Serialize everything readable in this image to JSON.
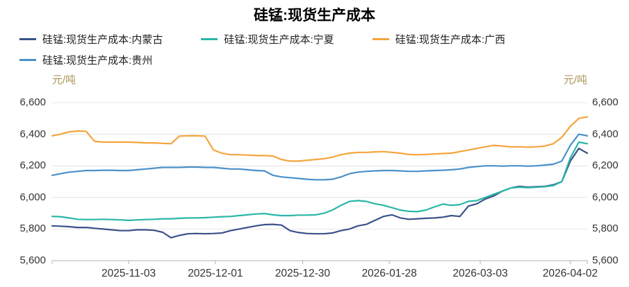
{
  "chart_data": {
    "type": "line",
    "title": "硅锰:现货生产成本",
    "y_unit": "元/吨",
    "ylim": [
      5600,
      6600
    ],
    "yticks": [
      5600,
      5800,
      6000,
      6200,
      6400,
      6600
    ],
    "grid": "horizontal",
    "legend_position": "top-left",
    "x_ticks": [
      {
        "label": "2025-11-03",
        "pos": 0.143
      },
      {
        "label": "2025-12-01",
        "pos": 0.305
      },
      {
        "label": "2025-12-30",
        "pos": 0.468
      },
      {
        "label": "2026-01-28",
        "pos": 0.63
      },
      {
        "label": "2026-03-03",
        "pos": 0.8
      },
      {
        "label": "2026-04-02",
        "pos": 0.968
      }
    ],
    "series": [
      {
        "name": "硅锰:现货生产成本:内蒙古",
        "color": "#3a5289",
        "values": [
          5820,
          5818,
          5815,
          5810,
          5810,
          5805,
          5800,
          5795,
          5790,
          5790,
          5795,
          5795,
          5792,
          5780,
          5745,
          5760,
          5770,
          5772,
          5770,
          5772,
          5775,
          5790,
          5800,
          5810,
          5820,
          5828,
          5830,
          5825,
          5790,
          5778,
          5772,
          5770,
          5770,
          5775,
          5790,
          5800,
          5820,
          5830,
          5855,
          5880,
          5890,
          5870,
          5862,
          5865,
          5868,
          5870,
          5875,
          5885,
          5880,
          5945,
          5960,
          5990,
          6010,
          6040,
          6060,
          6070,
          6065,
          6068,
          6070,
          6080,
          6100,
          6230,
          6310,
          6280
        ]
      },
      {
        "name": "硅锰:现货生产成本:宁夏",
        "color": "#29b6a8",
        "values": [
          5880,
          5878,
          5870,
          5862,
          5860,
          5860,
          5862,
          5860,
          5858,
          5855,
          5858,
          5860,
          5862,
          5865,
          5865,
          5868,
          5870,
          5870,
          5872,
          5875,
          5878,
          5880,
          5885,
          5890,
          5895,
          5898,
          5890,
          5885,
          5885,
          5888,
          5888,
          5890,
          5900,
          5920,
          5950,
          5975,
          5980,
          5975,
          5960,
          5950,
          5935,
          5920,
          5912,
          5910,
          5920,
          5940,
          5958,
          5950,
          5955,
          5975,
          5980,
          6000,
          6020,
          6040,
          6060,
          6065,
          6062,
          6065,
          6068,
          6075,
          6100,
          6250,
          6350,
          6340
        ]
      },
      {
        "name": "硅锰:现货生产成本:广西",
        "color": "#f5a43c",
        "values": [
          6390,
          6400,
          6415,
          6420,
          6418,
          6355,
          6350,
          6350,
          6350,
          6350,
          6348,
          6345,
          6345,
          6342,
          6340,
          6388,
          6390,
          6390,
          6388,
          6300,
          6280,
          6270,
          6270,
          6268,
          6265,
          6265,
          6262,
          6240,
          6230,
          6230,
          6235,
          6240,
          6245,
          6255,
          6270,
          6280,
          6285,
          6285,
          6288,
          6290,
          6285,
          6280,
          6272,
          6270,
          6272,
          6275,
          6278,
          6280,
          6290,
          6300,
          6310,
          6320,
          6330,
          6325,
          6320,
          6320,
          6318,
          6320,
          6325,
          6340,
          6380,
          6450,
          6500,
          6510
        ]
      },
      {
        "name": "硅锰:现货生产成本:贵州",
        "color": "#4a90c9",
        "values": [
          6140,
          6150,
          6160,
          6165,
          6170,
          6170,
          6172,
          6172,
          6170,
          6170,
          6175,
          6180,
          6185,
          6190,
          6190,
          6190,
          6192,
          6192,
          6190,
          6190,
          6185,
          6180,
          6180,
          6175,
          6170,
          6168,
          6140,
          6130,
          6125,
          6120,
          6115,
          6112,
          6112,
          6115,
          6130,
          6150,
          6160,
          6165,
          6168,
          6170,
          6170,
          6168,
          6165,
          6165,
          6168,
          6170,
          6172,
          6175,
          6180,
          6190,
          6195,
          6200,
          6200,
          6198,
          6200,
          6200,
          6198,
          6200,
          6205,
          6210,
          6230,
          6330,
          6400,
          6390
        ]
      }
    ],
    "colors": {
      "grid": "#e4e4e4",
      "axis": "#b0b0b0",
      "tick_label": "#333333",
      "unit_label": "#ab9556",
      "title": "#000000"
    }
  }
}
